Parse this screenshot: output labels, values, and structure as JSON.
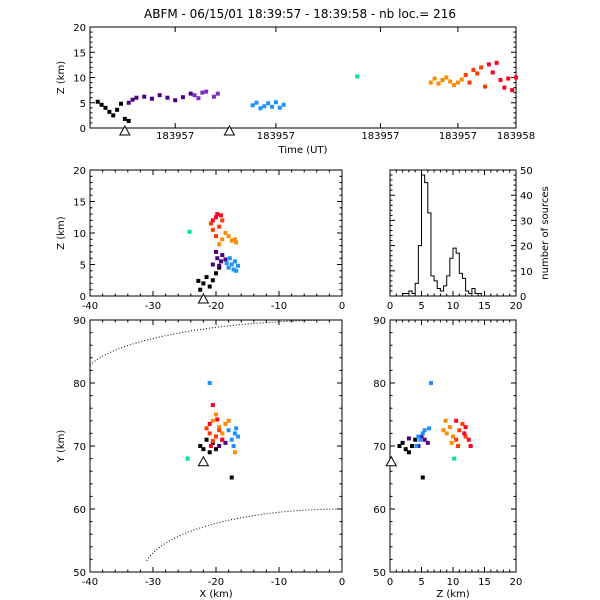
{
  "title": "ABFM - 06/15/01 18:39:57 - 18:39:58 - nb loc.=    216",
  "chart_data": [
    {
      "id": "time_height",
      "type": "scatter",
      "xlabel": "Time (UT)",
      "ylabel": "Z (km)",
      "ylim": [
        0,
        20
      ],
      "yticks": [
        "0",
        "5",
        "10",
        "15",
        "20"
      ],
      "xtick_labels": [
        "183957",
        "183957",
        "183957",
        "183957",
        "183958"
      ],
      "series": [
        {
          "color": "#000000",
          "points": [
            [
              0.02,
              5.2
            ],
            [
              0.03,
              4.6
            ],
            [
              0.04,
              4.0
            ],
            [
              0.05,
              3.2
            ],
            [
              0.06,
              2.5
            ],
            [
              0.07,
              3.6
            ],
            [
              0.08,
              4.8
            ],
            [
              0.09,
              1.8
            ],
            [
              0.1,
              1.4
            ]
          ]
        },
        {
          "color": "#4b0082",
          "points": [
            [
              0.1,
              5.0
            ],
            [
              0.11,
              5.6
            ],
            [
              0.12,
              6.0
            ],
            [
              0.14,
              6.2
            ],
            [
              0.16,
              5.8
            ],
            [
              0.18,
              6.5
            ],
            [
              0.2,
              6.0
            ],
            [
              0.22,
              5.5
            ],
            [
              0.24,
              6.1
            ],
            [
              0.26,
              6.8
            ]
          ]
        },
        {
          "color": "#7b2fbe",
          "points": [
            [
              0.27,
              6.5
            ],
            [
              0.28,
              5.9
            ],
            [
              0.29,
              7.0
            ],
            [
              0.3,
              7.2
            ],
            [
              0.32,
              6.2
            ],
            [
              0.33,
              6.8
            ]
          ]
        },
        {
          "color": "#1e90ff",
          "points": [
            [
              0.42,
              4.5
            ],
            [
              0.43,
              5.0
            ],
            [
              0.44,
              3.9
            ],
            [
              0.45,
              4.3
            ],
            [
              0.46,
              4.9
            ],
            [
              0.47,
              4.2
            ],
            [
              0.48,
              5.1
            ],
            [
              0.49,
              4.0
            ],
            [
              0.5,
              4.6
            ]
          ]
        },
        {
          "color": "#00e58f",
          "points": [
            [
              0.69,
              10.2
            ]
          ]
        },
        {
          "color": "#ff8c00",
          "points": [
            [
              0.88,
              9.0
            ],
            [
              0.89,
              9.8
            ],
            [
              0.9,
              8.8
            ],
            [
              0.91,
              9.5
            ],
            [
              0.92,
              10.0
            ],
            [
              0.93,
              9.2
            ],
            [
              0.94,
              8.5
            ],
            [
              0.95,
              9.0
            ],
            [
              0.96,
              9.6
            ]
          ]
        },
        {
          "color": "#ff3b00",
          "points": [
            [
              0.97,
              10.5
            ],
            [
              0.98,
              9.0
            ],
            [
              0.99,
              11.5
            ],
            [
              1.0,
              10.8
            ],
            [
              1.01,
              12.0
            ],
            [
              1.02,
              8.2
            ]
          ]
        },
        {
          "color": "#ff0020",
          "points": [
            [
              1.03,
              12.6
            ],
            [
              1.04,
              11.0
            ],
            [
              1.05,
              12.9
            ],
            [
              1.06,
              9.5
            ],
            [
              1.07,
              8.0
            ],
            [
              1.08,
              9.8
            ],
            [
              1.09,
              7.5
            ],
            [
              1.1,
              10.0
            ]
          ]
        }
      ],
      "markers": [
        [
          0.09,
          -0.5
        ],
        [
          0.36,
          -0.5
        ]
      ]
    },
    {
      "id": "x_z",
      "type": "scatter",
      "xlabel": "",
      "ylabel": "Z (km)",
      "xlim": [
        -40,
        0
      ],
      "ylim": [
        0,
        20
      ],
      "xticks": [
        "-40",
        "-30",
        "-20",
        "-10",
        "0"
      ],
      "yticks": [
        "0",
        "5",
        "10",
        "15",
        "20"
      ],
      "series": [
        {
          "color": "#000000",
          "points": [
            [
              -21.5,
              3.0
            ],
            [
              -22.0,
              2.0
            ],
            [
              -20.5,
              2.5
            ],
            [
              -21,
              1.5
            ],
            [
              -22.5,
              1.0
            ],
            [
              -20.0,
              3.6
            ],
            [
              -19.5,
              4.5
            ],
            [
              -22.8,
              2.4
            ]
          ]
        },
        {
          "color": "#4b0082",
          "points": [
            [
              -20.5,
              5.0
            ],
            [
              -19.8,
              6.0
            ],
            [
              -19.2,
              5.5
            ],
            [
              -20.0,
              7.0
            ],
            [
              -19.0,
              6.5
            ],
            [
              -18.5,
              5.8
            ],
            [
              -19.5,
              4.8
            ]
          ]
        },
        {
          "color": "#1e90ff",
          "points": [
            [
              -17.5,
              5.0
            ],
            [
              -18.0,
              4.5
            ],
            [
              -17.0,
              5.5
            ],
            [
              -16.5,
              4.8
            ],
            [
              -18.3,
              5.2
            ],
            [
              -17.8,
              6.0
            ],
            [
              -16.8,
              4.0
            ],
            [
              -17.2,
              4.2
            ]
          ]
        },
        {
          "color": "#00e58f",
          "points": [
            [
              -24.2,
              10.2
            ]
          ]
        },
        {
          "color": "#ff8c00",
          "points": [
            [
              -19.0,
              9.0
            ],
            [
              -18.0,
              9.5
            ],
            [
              -17.5,
              8.8
            ],
            [
              -16.8,
              8.5
            ],
            [
              -19.5,
              8.2
            ],
            [
              -18.5,
              10.0
            ],
            [
              -17.0,
              9.0
            ]
          ]
        },
        {
          "color": "#ff3b00",
          "points": [
            [
              -20.5,
              10.5
            ],
            [
              -19.5,
              11.0
            ],
            [
              -20.0,
              9.5
            ],
            [
              -19.0,
              12.0
            ],
            [
              -20.8,
              11.5
            ]
          ]
        },
        {
          "color": "#ff0020",
          "points": [
            [
              -20.0,
              12.5
            ],
            [
              -19.8,
              13.0
            ],
            [
              -20.5,
              12.0
            ],
            [
              -19.2,
              12.8
            ]
          ]
        }
      ],
      "markers": [
        [
          -22,
          -0.5
        ]
      ]
    },
    {
      "id": "histogram",
      "type": "bar",
      "xlabel": "",
      "ylabel": "number of sources",
      "xlim": [
        0,
        20
      ],
      "ylim": [
        0,
        50
      ],
      "xticks": [
        "0",
        "5",
        "10",
        "15",
        "20"
      ],
      "yticks": [
        "0",
        "10",
        "20",
        "30",
        "40",
        "50"
      ],
      "bin_width": 0.5,
      "bins_start": 0,
      "values": [
        0,
        0,
        0,
        0,
        1,
        1,
        2,
        1,
        5,
        20,
        48,
        45,
        33,
        8,
        6,
        3,
        2,
        4,
        8,
        15,
        19,
        17,
        9,
        7,
        2,
        1,
        3,
        1,
        1,
        0,
        0,
        0,
        0,
        0,
        0,
        0,
        0,
        0,
        0,
        0
      ]
    },
    {
      "id": "x_y",
      "type": "scatter",
      "xlabel": "X (km)",
      "ylabel": "Y (km)",
      "xlim": [
        -40,
        0
      ],
      "ylim": [
        50,
        90
      ],
      "xticks": [
        "-40",
        "-30",
        "-20",
        "-10",
        "0"
      ],
      "yticks": [
        "50",
        "60",
        "70",
        "80",
        "90"
      ],
      "series": [
        {
          "color": "#000000",
          "points": [
            [
              -22.0,
              69.5
            ],
            [
              -21.0,
              69.0
            ],
            [
              -20.5,
              70.5
            ],
            [
              -22.5,
              70.0
            ],
            [
              -21.5,
              71.0
            ],
            [
              -20.0,
              69.5
            ],
            [
              -17.5,
              65.0
            ]
          ]
        },
        {
          "color": "#4b0082",
          "points": [
            [
              -19.5,
              70.0
            ],
            [
              -19.0,
              71.0
            ],
            [
              -18.5,
              70.5
            ],
            [
              -20.0,
              71.5
            ]
          ]
        },
        {
          "color": "#1e90ff",
          "points": [
            [
              -17.5,
              71.0
            ],
            [
              -17.0,
              72.0
            ],
            [
              -16.5,
              71.5
            ],
            [
              -18.0,
              72.5
            ],
            [
              -17.2,
              70.0
            ],
            [
              -16.8,
              72.8
            ],
            [
              -21.0,
              80.0
            ]
          ]
        },
        {
          "color": "#00e58f",
          "points": [
            [
              -24.5,
              68.0
            ]
          ]
        },
        {
          "color": "#ff8c00",
          "points": [
            [
              -20.5,
              74.0
            ],
            [
              -19.5,
              73.0
            ],
            [
              -18.5,
              73.5
            ],
            [
              -19.0,
              72.0
            ],
            [
              -20.0,
              75.0
            ],
            [
              -18.0,
              74.0
            ],
            [
              -17.0,
              69.0
            ]
          ]
        },
        {
          "color": "#ff3b00",
          "points": [
            [
              -21.0,
              72.0
            ],
            [
              -20.0,
              71.5
            ],
            [
              -19.5,
              72.5
            ],
            [
              -21.5,
              72.8
            ],
            [
              -20.5,
              70.8
            ]
          ]
        },
        {
          "color": "#ff0020",
          "points": [
            [
              -21.0,
              73.5
            ],
            [
              -19.8,
              74.2
            ],
            [
              -20.5,
              76.5
            ],
            [
              -19.0,
              71.0
            ],
            [
              -20.8,
              70.0
            ]
          ]
        }
      ],
      "markers": [
        [
          -22,
          67.5
        ]
      ]
    },
    {
      "id": "z_y",
      "type": "scatter",
      "xlabel": "Z (km)",
      "ylabel": "",
      "xlim": [
        0,
        20
      ],
      "ylim": [
        50,
        90
      ],
      "xticks": [
        "0",
        "5",
        "10",
        "15",
        "20"
      ],
      "yticks": [
        "50",
        "60",
        "70",
        "80",
        "90"
      ],
      "series": [
        {
          "color": "#000000",
          "points": [
            [
              2.5,
              69.5
            ],
            [
              3.0,
              69.0
            ],
            [
              2.0,
              70.5
            ],
            [
              3.5,
              70.0
            ],
            [
              4.0,
              71.0
            ],
            [
              1.5,
              70.0
            ],
            [
              5.2,
              65.0
            ]
          ]
        },
        {
          "color": "#4b0082",
          "points": [
            [
              4.5,
              70.0
            ],
            [
              5.5,
              71.0
            ],
            [
              6.0,
              70.5
            ],
            [
              5.0,
              71.5
            ],
            [
              3.0,
              71.2
            ]
          ]
        },
        {
          "color": "#1e90ff",
          "points": [
            [
              4.8,
              71.0
            ],
            [
              5.2,
              72.0
            ],
            [
              4.5,
              71.5
            ],
            [
              5.5,
              72.5
            ],
            [
              4.2,
              70.0
            ],
            [
              6.2,
              72.8
            ],
            [
              6.5,
              80.0
            ]
          ]
        },
        {
          "color": "#00e58f",
          "points": [
            [
              10.2,
              68.0
            ]
          ]
        },
        {
          "color": "#ff8c00",
          "points": [
            [
              9.0,
              72.0
            ],
            [
              9.5,
              73.0
            ],
            [
              8.5,
              72.5
            ],
            [
              10.0,
              71.5
            ],
            [
              8.8,
              74.0
            ],
            [
              9.8,
              70.5
            ]
          ]
        },
        {
          "color": "#ff3b00",
          "points": [
            [
              10.5,
              71.0
            ],
            [
              11.0,
              72.5
            ],
            [
              11.5,
              73.5
            ],
            [
              10.8,
              70.0
            ],
            [
              12.0,
              71.5
            ]
          ]
        },
        {
          "color": "#ff0020",
          "points": [
            [
              12.5,
              71.0
            ],
            [
              12.8,
              70.0
            ],
            [
              11.8,
              72.0
            ],
            [
              10.5,
              74.0
            ],
            [
              12.0,
              73.0
            ]
          ]
        }
      ],
      "markers": [
        [
          0.2,
          67.5
        ]
      ]
    }
  ]
}
